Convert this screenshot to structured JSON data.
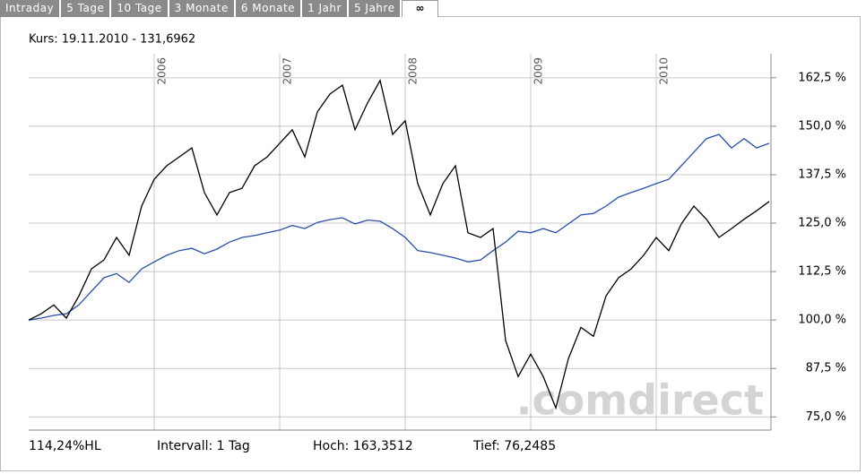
{
  "tabs": [
    "Intraday",
    "5 Tage",
    "10 Tage",
    "3 Monate",
    "6 Monate",
    "1 Jahr",
    "5 Jahre",
    "∞"
  ],
  "chart_data": {
    "type": "line",
    "subtitle": "Kurs: 19.11.2010 - 131,6962",
    "annotation": ".comdirect",
    "x": [
      2005.0,
      2005.1,
      2005.2,
      2005.3,
      2005.4,
      2005.5,
      2005.6,
      2005.7,
      2005.8,
      2005.9,
      2006.0,
      2006.1,
      2006.2,
      2006.3,
      2006.4,
      2006.5,
      2006.6,
      2006.7,
      2006.8,
      2006.9,
      2007.0,
      2007.1,
      2007.2,
      2007.3,
      2007.4,
      2007.5,
      2007.6,
      2007.7,
      2007.8,
      2007.9,
      2008.0,
      2008.1,
      2008.2,
      2008.3,
      2008.4,
      2008.5,
      2008.6,
      2008.7,
      2008.8,
      2008.9,
      2009.0,
      2009.1,
      2009.2,
      2009.3,
      2009.4,
      2009.5,
      2009.6,
      2009.7,
      2009.8,
      2009.9,
      2010.0,
      2010.1,
      2010.2,
      2010.3,
      2010.4,
      2010.5,
      2010.6,
      2010.7,
      2010.8,
      2010.9
    ],
    "series": [
      {
        "color": "#000000",
        "values": [
          100,
          101.6,
          103.9,
          100.5,
          106.2,
          113.2,
          115.5,
          121.3,
          116.7,
          129.4,
          136.3,
          139.8,
          142.1,
          144.4,
          132.9,
          127.1,
          132.9,
          134.0,
          139.8,
          142.1,
          145.6,
          149.1,
          142.1,
          153.7,
          158.3,
          160.6,
          149.1,
          156.0,
          161.8,
          147.9,
          151.4,
          135.2,
          127.1,
          135.2,
          139.8,
          122.5,
          121.3,
          123.6,
          94.7,
          85.4,
          91.2,
          85.4,
          77.3,
          90.0,
          98.1,
          95.8,
          106.2,
          110.9,
          113.2,
          116.7,
          121.3,
          117.9,
          124.8,
          129.4,
          126.0,
          121.3,
          123.6,
          126.0,
          128.2,
          130.6
        ]
      },
      {
        "color": "#2b4fa8",
        "values": [
          100,
          100.5,
          101.2,
          101.6,
          103.9,
          107.4,
          110.9,
          112.0,
          109.7,
          113.2,
          115.0,
          116.7,
          117.9,
          118.5,
          117.1,
          118.3,
          120.1,
          121.3,
          121.8,
          122.5,
          123.2,
          124.4,
          123.6,
          125.2,
          125.9,
          126.4,
          124.8,
          125.8,
          125.5,
          123.6,
          121.3,
          117.9,
          117.4,
          116.7,
          116.0,
          115.0,
          115.5,
          117.9,
          120.1,
          122.9,
          122.5,
          123.6,
          122.5,
          124.8,
          127.1,
          127.5,
          129.4,
          131.7,
          132.9,
          134.0,
          135.2,
          136.3,
          139.8,
          143.3,
          146.8,
          147.9,
          144.4,
          146.8,
          144.4,
          145.6
        ]
      }
    ],
    "xlim": [
      2005.0,
      2010.9
    ],
    "xticks": [
      2006,
      2007,
      2008,
      2009,
      2010
    ],
    "ylim": [
      71.6,
      168.7
    ],
    "yticks": [
      {
        "value": 75,
        "label": "75,0 %"
      },
      {
        "value": 87.5,
        "label": "87,5 %"
      },
      {
        "value": 100,
        "label": "100,0 %"
      },
      {
        "value": 112.5,
        "label": "112,5 %"
      },
      {
        "value": 125,
        "label": "125,0 %"
      },
      {
        "value": 137.5,
        "label": "137,5 %"
      },
      {
        "value": 150,
        "label": "150,0 %"
      },
      {
        "value": 162.5,
        "label": "162,5 %"
      }
    ],
    "grid": true
  },
  "footer": [
    "114,24%HL",
    "Intervall: 1 Tag",
    "Hoch: 163,3512",
    "Tief: 76,2485"
  ]
}
